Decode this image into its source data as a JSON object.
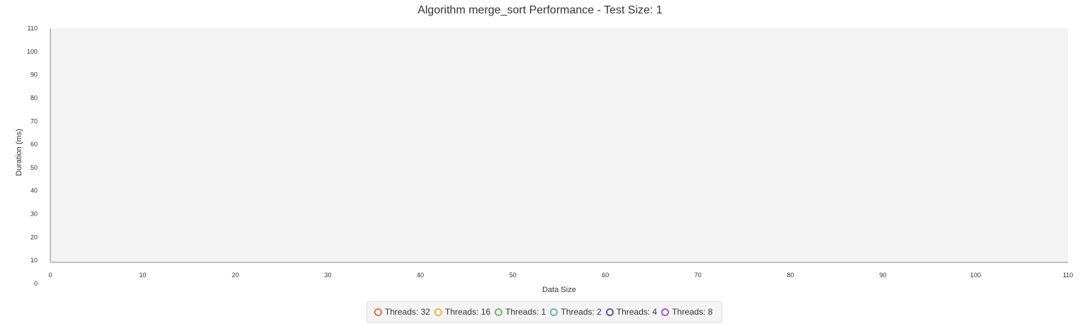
{
  "chart_data": {
    "type": "line",
    "title": "Algorithm merge_sort Performance - Test Size: 1",
    "xlabel": "Data Size",
    "ylabel": "Duration (ms)",
    "xlim": [
      0,
      110
    ],
    "ylim": [
      0,
      110
    ],
    "x_ticks": [
      "0",
      "10",
      "20",
      "30",
      "40",
      "50",
      "60",
      "70",
      "80",
      "90",
      "100",
      "110"
    ],
    "y_ticks": [
      "0",
      "10",
      "20",
      "30",
      "40",
      "50",
      "60",
      "70",
      "80",
      "90",
      "100",
      "110"
    ],
    "grid": false,
    "legend_position": "bottom",
    "plot_background": "#f3f3f3",
    "series": [
      {
        "name": "Threads: 32",
        "color": "#e8703f",
        "points": []
      },
      {
        "name": "Threads: 16",
        "color": "#e8b83a",
        "points": []
      },
      {
        "name": "Threads: 1",
        "color": "#67bf5c",
        "points": []
      },
      {
        "name": "Threads: 2",
        "color": "#58b3cc",
        "points": []
      },
      {
        "name": "Threads: 4",
        "color": "#4a5ab8",
        "points": []
      },
      {
        "name": "Threads: 8",
        "color": "#a65cbd",
        "points": []
      }
    ]
  }
}
